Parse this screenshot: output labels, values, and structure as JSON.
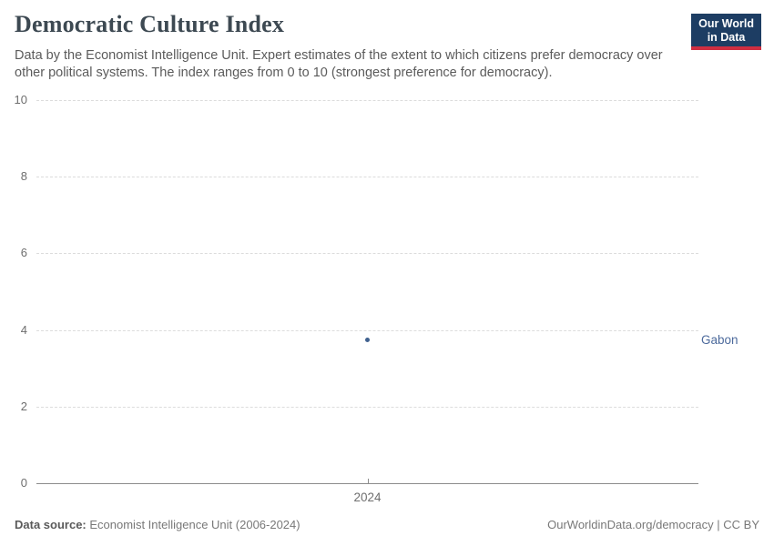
{
  "header": {
    "title": "Democratic Culture Index",
    "subtitle": "Data by the Economist Intelligence Unit. Expert estimates of the extent to which citizens prefer democracy over other political systems. The index ranges from 0 to 10 (strongest preference for democracy).",
    "logo": {
      "line1": "Our World",
      "line2": "in Data",
      "bg_color": "#1d3d63",
      "accent_color": "#cf2e41"
    }
  },
  "chart_data": {
    "type": "scatter",
    "title": "Democratic Culture Index",
    "x": [
      2024
    ],
    "xticks": [
      "2024"
    ],
    "series": [
      {
        "name": "Gabon",
        "values": [
          3.75
        ],
        "color": "#40618f",
        "label_color": "#4c6a9c"
      }
    ],
    "ylim": [
      0,
      10
    ],
    "yticks": [
      0,
      2,
      4,
      6,
      8,
      10
    ],
    "xlabel": "",
    "ylabel": "",
    "grid": "horizontal-dashed",
    "legend": "entity-label-right"
  },
  "footer": {
    "source_label": "Data source:",
    "source_value": " Economist Intelligence Unit (2006-2024)",
    "credit": "OurWorldinData.org/democracy | CC BY"
  }
}
